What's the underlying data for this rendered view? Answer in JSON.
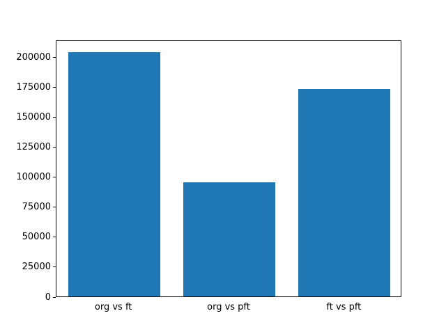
{
  "chart_data": {
    "type": "bar",
    "title": "",
    "xlabel": "",
    "ylabel": "",
    "categories": [
      "org vs ft",
      "org vs pft",
      "ft vs pft"
    ],
    "values": [
      204000,
      95000,
      173000
    ],
    "yticks": [
      0,
      25000,
      50000,
      75000,
      100000,
      125000,
      150000,
      175000,
      200000
    ],
    "ylim": [
      0,
      214200
    ],
    "bar_color": "#1f77b4",
    "background_color": "#ffffff",
    "axis_color": "#000000",
    "grid": false,
    "legend_position": "none"
  }
}
